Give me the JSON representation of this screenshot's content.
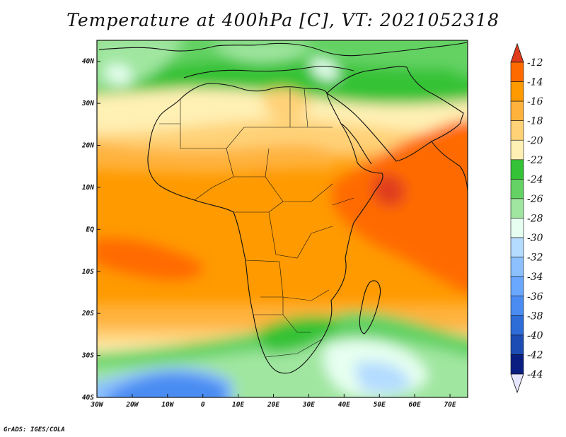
{
  "title": "Temperature at 400hPa [C], VT: 2021052318",
  "credit": "GrADS: IGES/COLA",
  "map": {
    "lon_range": [
      -30,
      75
    ],
    "lat_range": [
      -40,
      45
    ],
    "lon_ticks": [
      {
        "lon": -30,
        "label": "30W"
      },
      {
        "lon": -20,
        "label": "20W"
      },
      {
        "lon": -10,
        "label": "10W"
      },
      {
        "lon": 0,
        "label": "0"
      },
      {
        "lon": 10,
        "label": "10E"
      },
      {
        "lon": 20,
        "label": "20E"
      },
      {
        "lon": 30,
        "label": "30E"
      },
      {
        "lon": 40,
        "label": "40E"
      },
      {
        "lon": 50,
        "label": "50E"
      },
      {
        "lon": 60,
        "label": "60E"
      },
      {
        "lon": 70,
        "label": "70E"
      }
    ],
    "lat_ticks": [
      {
        "lat": 40,
        "label": "40N"
      },
      {
        "lat": 30,
        "label": "30N"
      },
      {
        "lat": 20,
        "label": "20N"
      },
      {
        "lat": 10,
        "label": "10N"
      },
      {
        "lat": 0,
        "label": "EQ"
      },
      {
        "lat": -10,
        "label": "10S"
      },
      {
        "lat": -20,
        "label": "20S"
      },
      {
        "lat": -30,
        "label": "30S"
      },
      {
        "lat": -40,
        "label": "40S"
      }
    ]
  },
  "colorbar": {
    "labels": [
      "-12",
      "-14",
      "-16",
      "-18",
      "-20",
      "-22",
      "-24",
      "-26",
      "-28",
      "-30",
      "-32",
      "-34",
      "-36",
      "-38",
      "-40",
      "-42",
      "-44"
    ],
    "colors": [
      "#e03c1c",
      "#ff6a00",
      "#ff9a00",
      "#ffb23c",
      "#ffd278",
      "#fff0b4",
      "#36c236",
      "#64d264",
      "#a0e6a0",
      "#e6fff0",
      "#b4dcff",
      "#8cc0ff",
      "#6aa8ff",
      "#4a8cf2",
      "#2e6cd8",
      "#1c4cb4",
      "#0a1e82",
      "#e6e6ff"
    ]
  }
}
